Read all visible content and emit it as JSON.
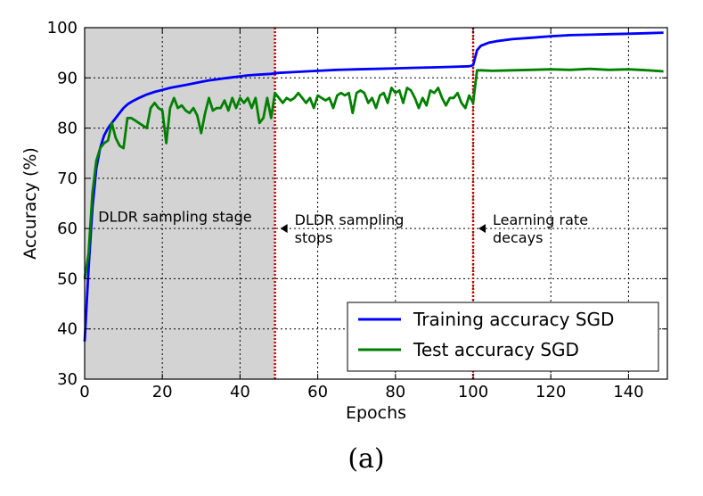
{
  "chart_data": {
    "type": "line",
    "xlabel": "Epochs",
    "ylabel": "Accuracy (%)",
    "xlim": [
      0,
      150
    ],
    "ylim": [
      30,
      100
    ],
    "xticks": [
      0,
      20,
      40,
      60,
      80,
      100,
      120,
      140
    ],
    "yticks": [
      30,
      40,
      50,
      60,
      70,
      80,
      90,
      100
    ],
    "grid": true,
    "legend_position": "bottom-right",
    "shaded_region": {
      "x": [
        0,
        49
      ],
      "color": "#d3d3d3"
    },
    "vlines": [
      {
        "x": 49,
        "color": "#cc0000",
        "style": "dotted"
      },
      {
        "x": 100,
        "color": "#cc0000",
        "style": "dotted"
      }
    ],
    "annotations": [
      {
        "text": "DLDR sampling stage",
        "x": 3.5,
        "y": 61
      },
      {
        "text": "DLDR sampling\nstops",
        "x": 49,
        "y": 60
      },
      {
        "text": "Learning rate\ndecays",
        "x": 100,
        "y": 60
      }
    ],
    "series": [
      {
        "name": "Training accuracy SGD",
        "color": "#0000ff",
        "x": [
          0,
          1,
          2,
          3,
          4,
          5,
          6,
          7,
          8,
          9,
          10,
          11,
          12,
          14,
          16,
          18,
          20,
          22,
          24,
          26,
          28,
          30,
          32,
          34,
          36,
          38,
          40,
          42,
          44,
          46,
          48,
          49,
          50,
          55,
          60,
          65,
          70,
          75,
          80,
          85,
          90,
          95,
          99,
          100,
          101,
          102,
          104,
          106,
          110,
          115,
          120,
          125,
          130,
          135,
          140,
          145,
          149
        ],
        "y": [
          37.5,
          52,
          64,
          72,
          76,
          78.5,
          80,
          81,
          82,
          83,
          84,
          84.7,
          85.2,
          86,
          86.7,
          87.2,
          87.6,
          88,
          88.3,
          88.6,
          88.9,
          89.2,
          89.5,
          89.7,
          89.9,
          90.1,
          90.3,
          90.5,
          90.6,
          90.7,
          90.8,
          90.9,
          91,
          91.2,
          91.4,
          91.6,
          91.7,
          91.8,
          91.9,
          92,
          92.1,
          92.2,
          92.3,
          92.5,
          95.5,
          96.4,
          97,
          97.3,
          97.7,
          98,
          98.3,
          98.5,
          98.6,
          98.7,
          98.8,
          98.9,
          99
        ]
      },
      {
        "name": "Test accuracy SGD",
        "color": "#008000",
        "x": [
          0,
          1,
          2,
          3,
          4,
          5,
          6,
          7,
          8,
          9,
          10,
          11,
          12,
          13,
          14,
          15,
          16,
          17,
          18,
          19,
          20,
          21,
          22,
          23,
          24,
          25,
          26,
          27,
          28,
          29,
          30,
          31,
          32,
          33,
          34,
          35,
          36,
          37,
          38,
          39,
          40,
          41,
          42,
          43,
          44,
          45,
          46,
          47,
          48,
          49,
          50,
          51,
          52,
          53,
          54,
          55,
          56,
          57,
          58,
          59,
          60,
          61,
          62,
          63,
          64,
          65,
          66,
          67,
          68,
          69,
          70,
          71,
          72,
          73,
          74,
          75,
          76,
          77,
          78,
          79,
          80,
          81,
          82,
          83,
          84,
          85,
          86,
          87,
          88,
          89,
          90,
          91,
          92,
          93,
          94,
          95,
          96,
          97,
          98,
          99,
          100,
          101,
          102,
          105,
          110,
          115,
          120,
          125,
          130,
          135,
          140,
          145,
          149
        ],
        "y": [
          50,
          55,
          67,
          73.5,
          76,
          77,
          77.5,
          81,
          78,
          76.5,
          76,
          82,
          82,
          81.5,
          81,
          80.5,
          80,
          84,
          85,
          84,
          83.5,
          77,
          84,
          86,
          84,
          84.5,
          83.5,
          83,
          84,
          82.5,
          79,
          83,
          86,
          83.5,
          84,
          84,
          85.5,
          83.5,
          86,
          84,
          86,
          85,
          86,
          84,
          86,
          81,
          82,
          86,
          82,
          87,
          86,
          85,
          86,
          85.5,
          86,
          87,
          86,
          85,
          86,
          84,
          86.5,
          86,
          85.5,
          86,
          84,
          86.5,
          87,
          86.5,
          87,
          83,
          87,
          87.5,
          87,
          85,
          86,
          84,
          86.5,
          87,
          85,
          88,
          87,
          87.5,
          85,
          88,
          87.5,
          86,
          84,
          86,
          84.5,
          87.5,
          87,
          88,
          86,
          84.5,
          86,
          86,
          87,
          85,
          84,
          86.5,
          85,
          91.5,
          91.5,
          91.4,
          91.5,
          91.6,
          91.7,
          91.6,
          91.8,
          91.6,
          91.7,
          91.5,
          91.3
        ]
      }
    ],
    "caption": "(a)"
  }
}
